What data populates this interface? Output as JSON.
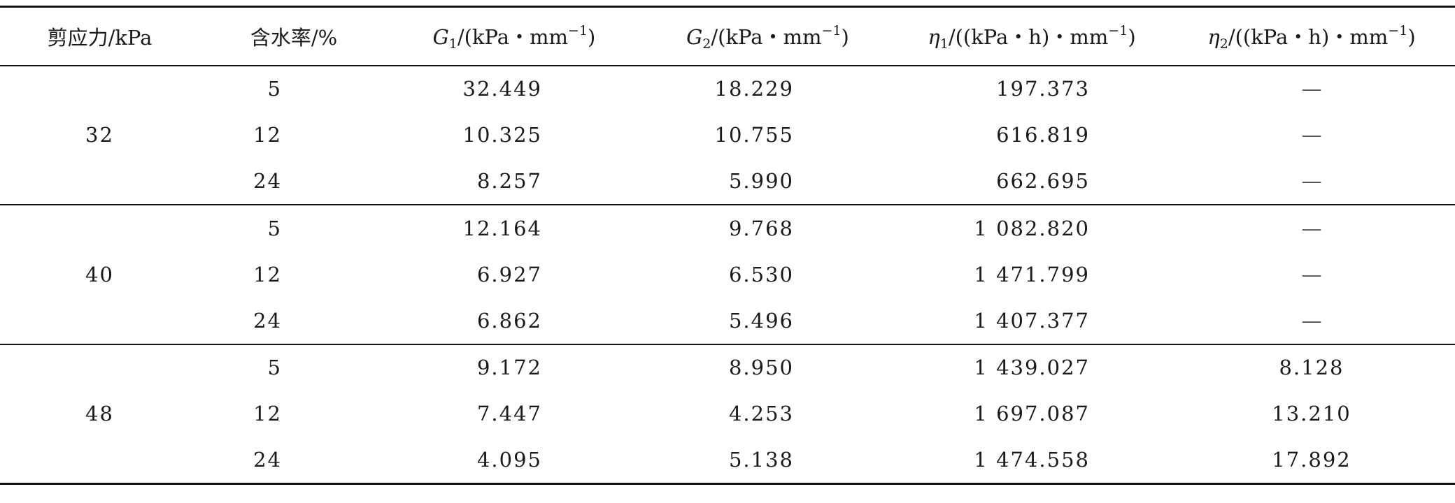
{
  "table": {
    "headers": {
      "shear_stress": "剪应力/kPa",
      "water_content": "含水率/%",
      "g1_symbol": "G",
      "g1_sub": "1",
      "g1_unit_pre": "/(kPa・mm",
      "g1_sup": "−1",
      "g1_unit_post": ")",
      "g2_symbol": "G",
      "g2_sub": "2",
      "g2_unit_pre": "/(kPa・mm",
      "g2_sup": "−1",
      "g2_unit_post": ")",
      "eta1_symbol": "η",
      "eta1_sub": "1",
      "eta1_unit_pre": "/((kPa・h)・mm",
      "eta1_sup": "−1",
      "eta1_unit_post": ")",
      "eta2_symbol": "η",
      "eta2_sub": "2",
      "eta2_unit_pre": "/((kPa・h)・mm",
      "eta2_sup": "−1",
      "eta2_unit_post": ")"
    },
    "groups": [
      {
        "shear_stress": "32",
        "rows": [
          {
            "water_content": "5",
            "g1": "32.449",
            "g2": "18.229",
            "eta1": "197.373",
            "eta2": "—"
          },
          {
            "water_content": "12",
            "g1": "10.325",
            "g2": "10.755",
            "eta1": "616.819",
            "eta2": "—"
          },
          {
            "water_content": "24",
            "g1": "8.257",
            "g2": "5.990",
            "eta1": "662.695",
            "eta2": "—"
          }
        ]
      },
      {
        "shear_stress": "40",
        "rows": [
          {
            "water_content": "5",
            "g1": "12.164",
            "g2": "9.768",
            "eta1": "1 082.820",
            "eta2": "—"
          },
          {
            "water_content": "12",
            "g1": "6.927",
            "g2": "6.530",
            "eta1": "1 471.799",
            "eta2": "—"
          },
          {
            "water_content": "24",
            "g1": "6.862",
            "g2": "5.496",
            "eta1": "1 407.377",
            "eta2": "—"
          }
        ]
      },
      {
        "shear_stress": "48",
        "rows": [
          {
            "water_content": "5",
            "g1": "9.172",
            "g2": "8.950",
            "eta1": "1 439.027",
            "eta2": "8.128"
          },
          {
            "water_content": "12",
            "g1": "7.447",
            "g2": "4.253",
            "eta1": "1 697.087",
            "eta2": "13.210"
          },
          {
            "water_content": "24",
            "g1": "4.095",
            "g2": "5.138",
            "eta1": "1 474.558",
            "eta2": "17.892"
          }
        ]
      }
    ]
  }
}
